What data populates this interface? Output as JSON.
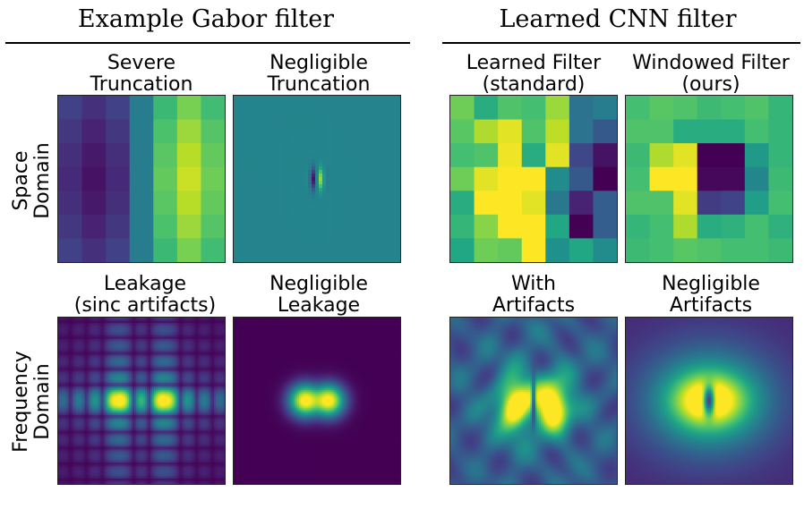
{
  "headers": {
    "gabor": "Example Gabor filter",
    "cnn": "Learned CNN filter"
  },
  "row_labels": {
    "space": [
      "Space",
      "Domain"
    ],
    "frequency": [
      "Frequency",
      "Domain"
    ]
  },
  "panels": {
    "severe": [
      "Severe",
      "Truncation"
    ],
    "negligible_trunc": [
      "Negligible",
      "Truncation"
    ],
    "learned": [
      "Learned Filter",
      "(standard)"
    ],
    "windowed": [
      "Windowed Filter",
      "(ours)"
    ],
    "leakage": [
      "Leakage",
      "(sinc artifacts)"
    ],
    "negligible_leak": [
      "Negligible",
      "Leakage"
    ],
    "with_artifacts": [
      "With",
      "Artifacts"
    ],
    "negligible_art": [
      "Negligible",
      "Artifacts"
    ]
  },
  "colors": {
    "viridis_low": "#440154",
    "viridis_mid": "#21908d",
    "viridis_high": "#fde725"
  }
}
